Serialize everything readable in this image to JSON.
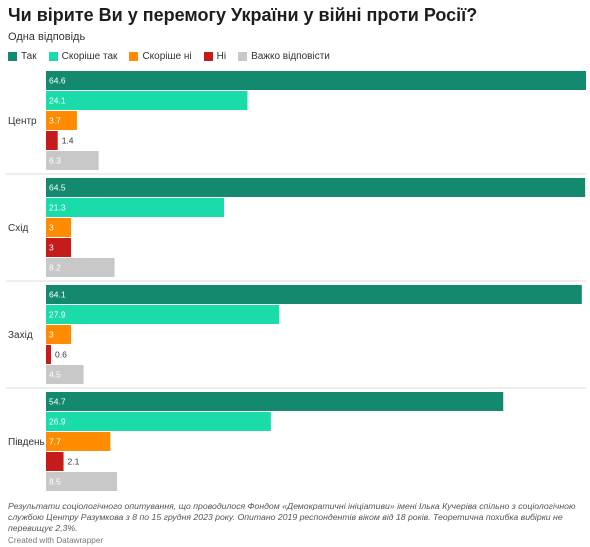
{
  "title": "Чи вірите Ви у перемогу України у війні проти Росії?",
  "subtitle": "Одна відповідь",
  "notes": "Результати соціологічного опитування, що проводилося Фондом «Демократичні ініціативи» імені Ілька Кучеріва спільно з соціологічною службою Центру Разумкова з 8 по 15 грудня 2023 року. Опитано 2019 респондентів віком від 18 років. Теоретична похибка вибірки не перевищує 2,3%.",
  "credit": "Created with Datawrapper",
  "chart_data": {
    "type": "bar",
    "orientation": "horizontal",
    "categories": [
      "Центр",
      "Схід",
      "Захід",
      "Південь"
    ],
    "series": [
      {
        "name": "Так",
        "color": "#138a6e",
        "values": [
          64.6,
          64.5,
          64.1,
          54.7
        ]
      },
      {
        "name": "Скоріше так",
        "color": "#19dcaa",
        "values": [
          24.1,
          21.3,
          27.9,
          26.9
        ]
      },
      {
        "name": "Скоріше ні",
        "color": "#ff8c00",
        "values": [
          3.7,
          3,
          3,
          7.7
        ]
      },
      {
        "name": "Ні",
        "color": "#c51b1b",
        "values": [
          1.4,
          3,
          0.6,
          2.1
        ]
      },
      {
        "name": "Важко відповісти",
        "color": "#c8c8c8",
        "values": [
          6.3,
          8.2,
          4.5,
          8.5
        ]
      }
    ],
    "value_labels": [
      [
        "64.6",
        "24.1",
        "3.7",
        "1.4",
        "6.3"
      ],
      [
        "64.5",
        "21.3",
        "3",
        "3",
        "8.2"
      ],
      [
        "64.1",
        "27.9",
        "3",
        "0.6",
        "4.5"
      ],
      [
        "54.7",
        "26.9",
        "7.7",
        "2.1",
        "8.5"
      ]
    ],
    "xlim": [
      0,
      64.6
    ],
    "grid": false,
    "legend_position": "top-left"
  }
}
